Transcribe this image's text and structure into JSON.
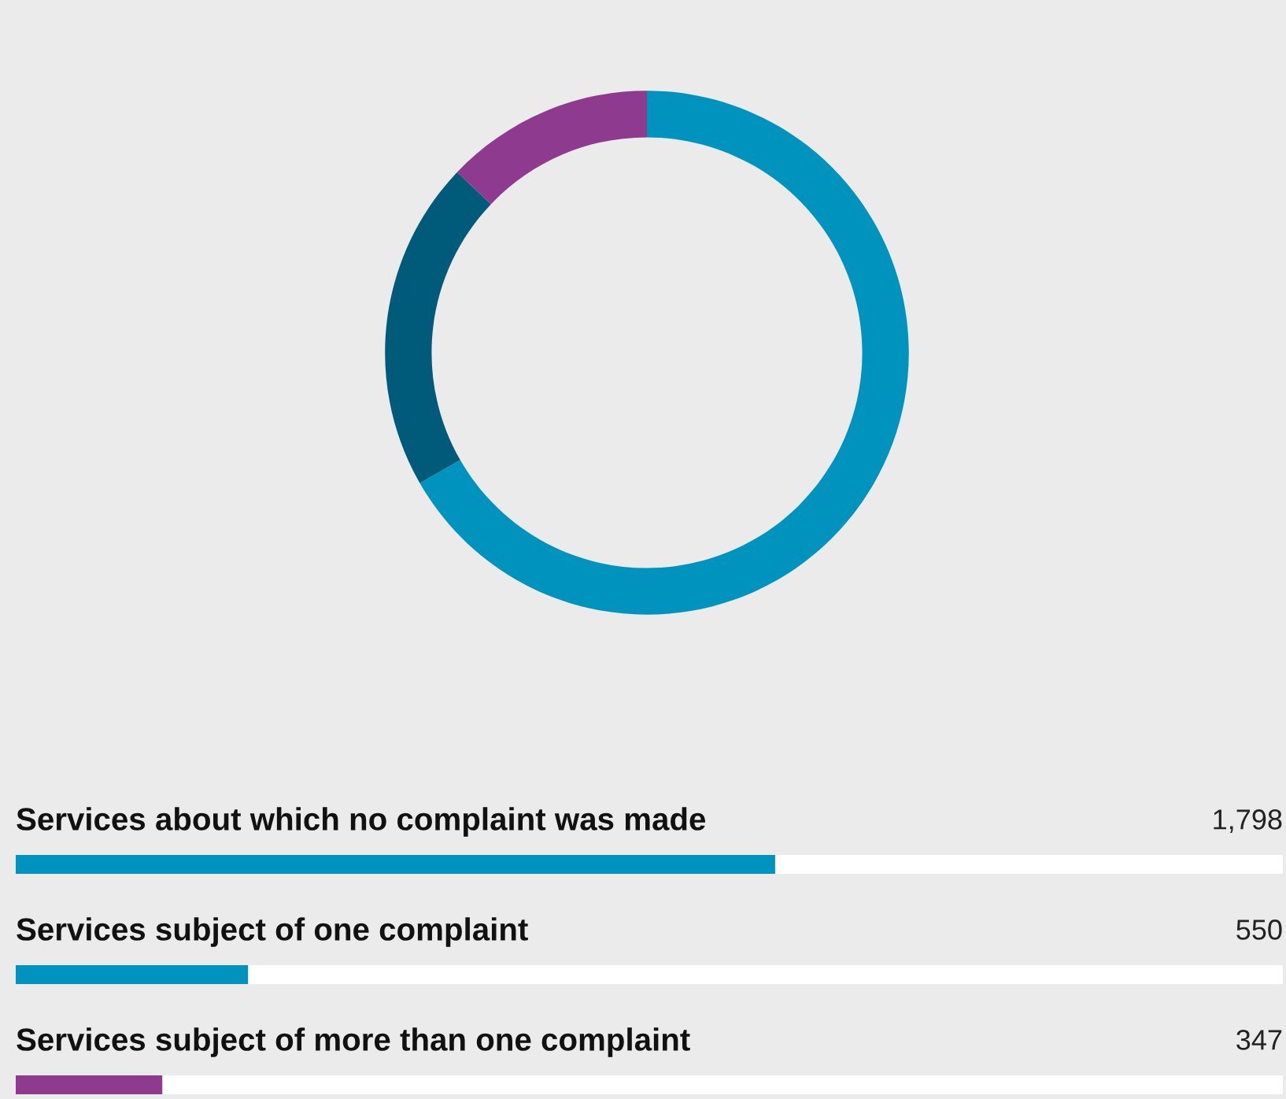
{
  "chart_data": [
    {
      "type": "donut",
      "categories": [
        null,
        null,
        null
      ],
      "values": [
        66.7,
        20.4,
        12.9
      ],
      "colors": [
        "#0093bd",
        "#005a7a",
        "#8e3a8f"
      ]
    },
    {
      "type": "bar",
      "orientation": "horizontal",
      "categories": [
        "Services about which no complaint was made",
        "Services subject of one complaint",
        "Services subject of more than one complaint"
      ],
      "values": [
        1798,
        550,
        347
      ],
      "value_labels": [
        "1,798",
        "550",
        "347"
      ],
      "colors": [
        "#0093bd",
        "#0093bd",
        "#8e3a8f"
      ],
      "xlim": [
        0,
        3000
      ]
    }
  ]
}
